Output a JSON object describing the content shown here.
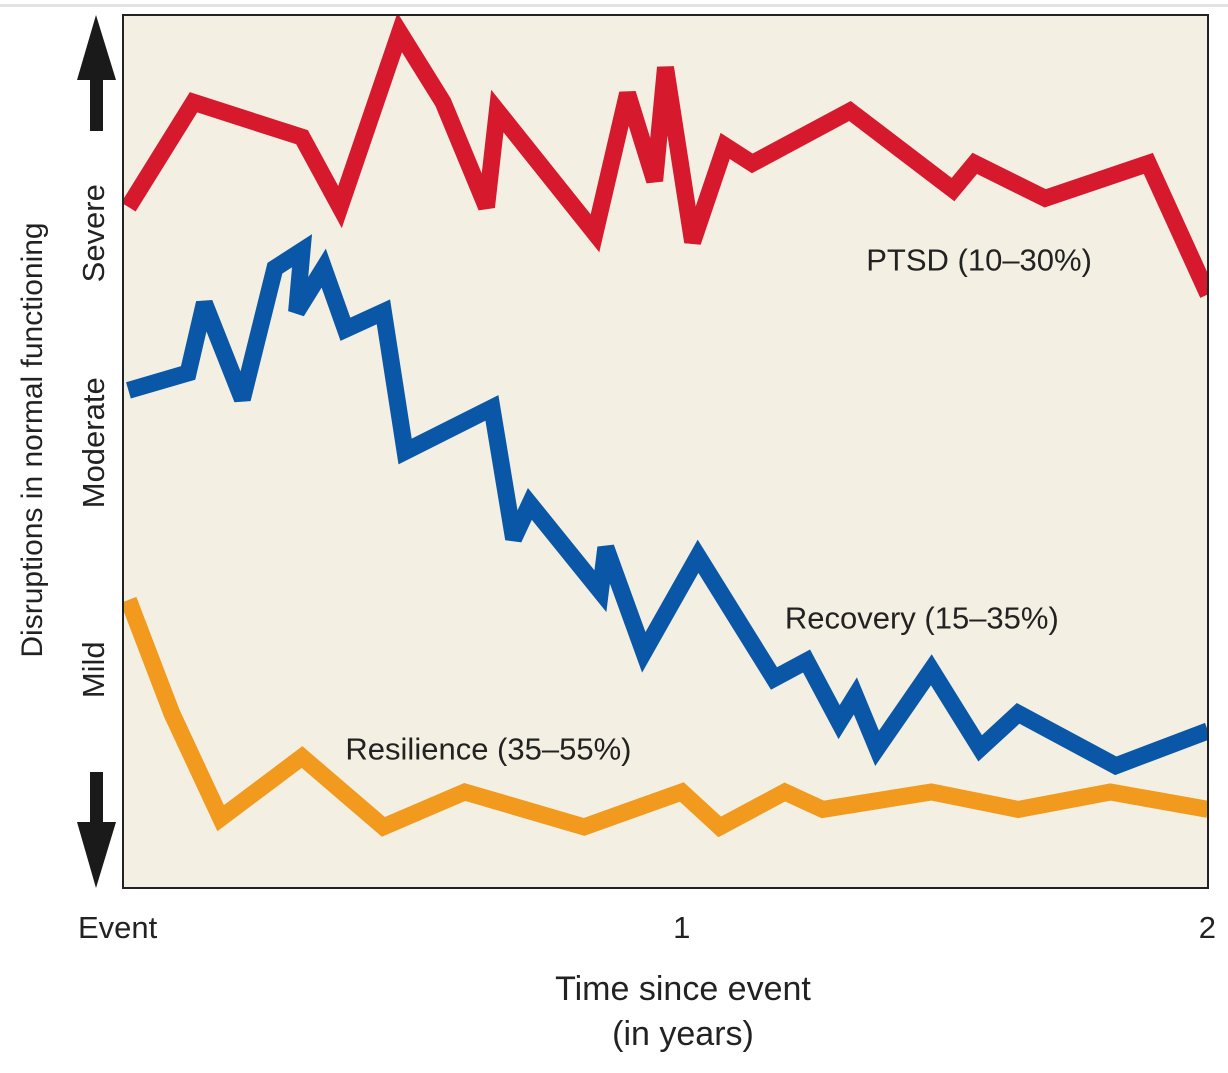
{
  "chart_data": {
    "type": "line",
    "title": "",
    "xlabel": [
      "Time since event",
      "(in years)"
    ],
    "ylabel": "Disruptions in normal functioning",
    "xlim": [
      0,
      2
    ],
    "ylim": [
      0,
      100
    ],
    "grid": false,
    "legend": "none (inline labels)",
    "plot_background": "#f3efe3",
    "x_ticks": [
      {
        "value": 0,
        "label": "Event"
      },
      {
        "value": 1.03,
        "label": "1"
      },
      {
        "value": 2,
        "label": "2"
      }
    ],
    "y_ticks": [
      {
        "value": 75,
        "label": "Severe"
      },
      {
        "value": 51,
        "label": "Moderate"
      },
      {
        "value": 25,
        "label": "Mild"
      }
    ],
    "series": [
      {
        "name": "PTSD (10–30%)",
        "color": "#d7192e",
        "label_at": {
          "x": 1.37,
          "y": 72
        },
        "x": [
          0.01,
          0.13,
          0.33,
          0.4,
          0.51,
          0.59,
          0.67,
          0.69,
          0.87,
          0.93,
          0.98,
          1.0,
          1.05,
          1.11,
          1.16,
          1.34,
          1.53,
          1.57,
          1.7,
          1.89,
          2.0
        ],
        "y": [
          78,
          90,
          86,
          78,
          98,
          90,
          78,
          89,
          75,
          91,
          81,
          94,
          74,
          85,
          83,
          89,
          80,
          83,
          79,
          83,
          68
        ]
      },
      {
        "name": "Recovery (15–35%)",
        "color": "#0a57a8",
        "label_at": {
          "x": 1.22,
          "y": 31
        },
        "x": [
          0.01,
          0.12,
          0.15,
          0.22,
          0.28,
          0.33,
          0.32,
          0.37,
          0.41,
          0.48,
          0.52,
          0.68,
          0.72,
          0.75,
          0.88,
          0.89,
          0.96,
          1.06,
          1.2,
          1.26,
          1.32,
          1.35,
          1.39,
          1.49,
          1.58,
          1.65,
          1.83,
          2.0
        ],
        "y": [
          57,
          59,
          67,
          56,
          71,
          73,
          66,
          71,
          64,
          66,
          50,
          55,
          40,
          44,
          34,
          39,
          27,
          38,
          24,
          26,
          19,
          22,
          16,
          25,
          16,
          20,
          14,
          18
        ]
      },
      {
        "name": "Resilience (35–55%)",
        "color": "#f29a1d",
        "label_at": {
          "x": 0.41,
          "y": 16
        },
        "x": [
          0.01,
          0.09,
          0.18,
          0.33,
          0.48,
          0.63,
          0.85,
          1.03,
          1.1,
          1.22,
          1.29,
          1.49,
          1.65,
          1.82,
          2.0
        ],
        "y": [
          33,
          20,
          8,
          15,
          7,
          11,
          7,
          11,
          7,
          11,
          9,
          11,
          9,
          11,
          9
        ]
      }
    ]
  }
}
